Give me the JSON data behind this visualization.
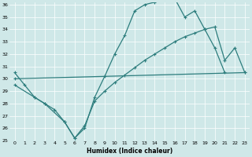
{
  "xlabel": "Humidex (Indice chaleur)",
  "background_color": "#cfe8e8",
  "grid_color": "#ffffff",
  "line_color": "#2d7d7d",
  "line1_x": [
    0,
    1,
    2,
    3,
    4,
    5,
    6,
    7,
    8,
    9,
    10,
    11,
    12,
    13,
    14,
    15,
    16,
    17,
    18,
    19,
    20,
    21
  ],
  "line1_y": [
    30.5,
    29.5,
    28.5,
    28.0,
    27.5,
    26.5,
    25.2,
    26.0,
    28.5,
    30.2,
    32.0,
    33.5,
    35.5,
    36.0,
    36.2,
    36.5,
    36.5,
    35.0,
    35.5,
    34.0,
    32.5,
    30.5
  ],
  "line2_x": [
    0,
    2,
    3,
    5,
    6,
    7,
    8,
    9,
    10,
    11,
    12,
    13,
    14,
    15,
    16,
    17,
    18,
    19,
    20,
    21,
    22,
    23
  ],
  "line2_y": [
    29.5,
    28.5,
    28.0,
    26.5,
    25.2,
    26.2,
    28.2,
    29.0,
    29.7,
    30.3,
    30.9,
    31.5,
    32.0,
    32.5,
    33.0,
    33.4,
    33.7,
    34.0,
    34.2,
    31.5,
    32.5,
    30.5
  ],
  "line3_x": [
    0,
    23
  ],
  "line3_y": [
    30.0,
    30.5
  ],
  "ylim": [
    25,
    36
  ],
  "yticks": [
    25,
    26,
    27,
    28,
    29,
    30,
    31,
    32,
    33,
    34,
    35,
    36
  ],
  "xticks": [
    0,
    1,
    2,
    3,
    4,
    5,
    6,
    7,
    8,
    9,
    10,
    11,
    12,
    13,
    14,
    15,
    16,
    17,
    18,
    19,
    20,
    21,
    22,
    23
  ]
}
